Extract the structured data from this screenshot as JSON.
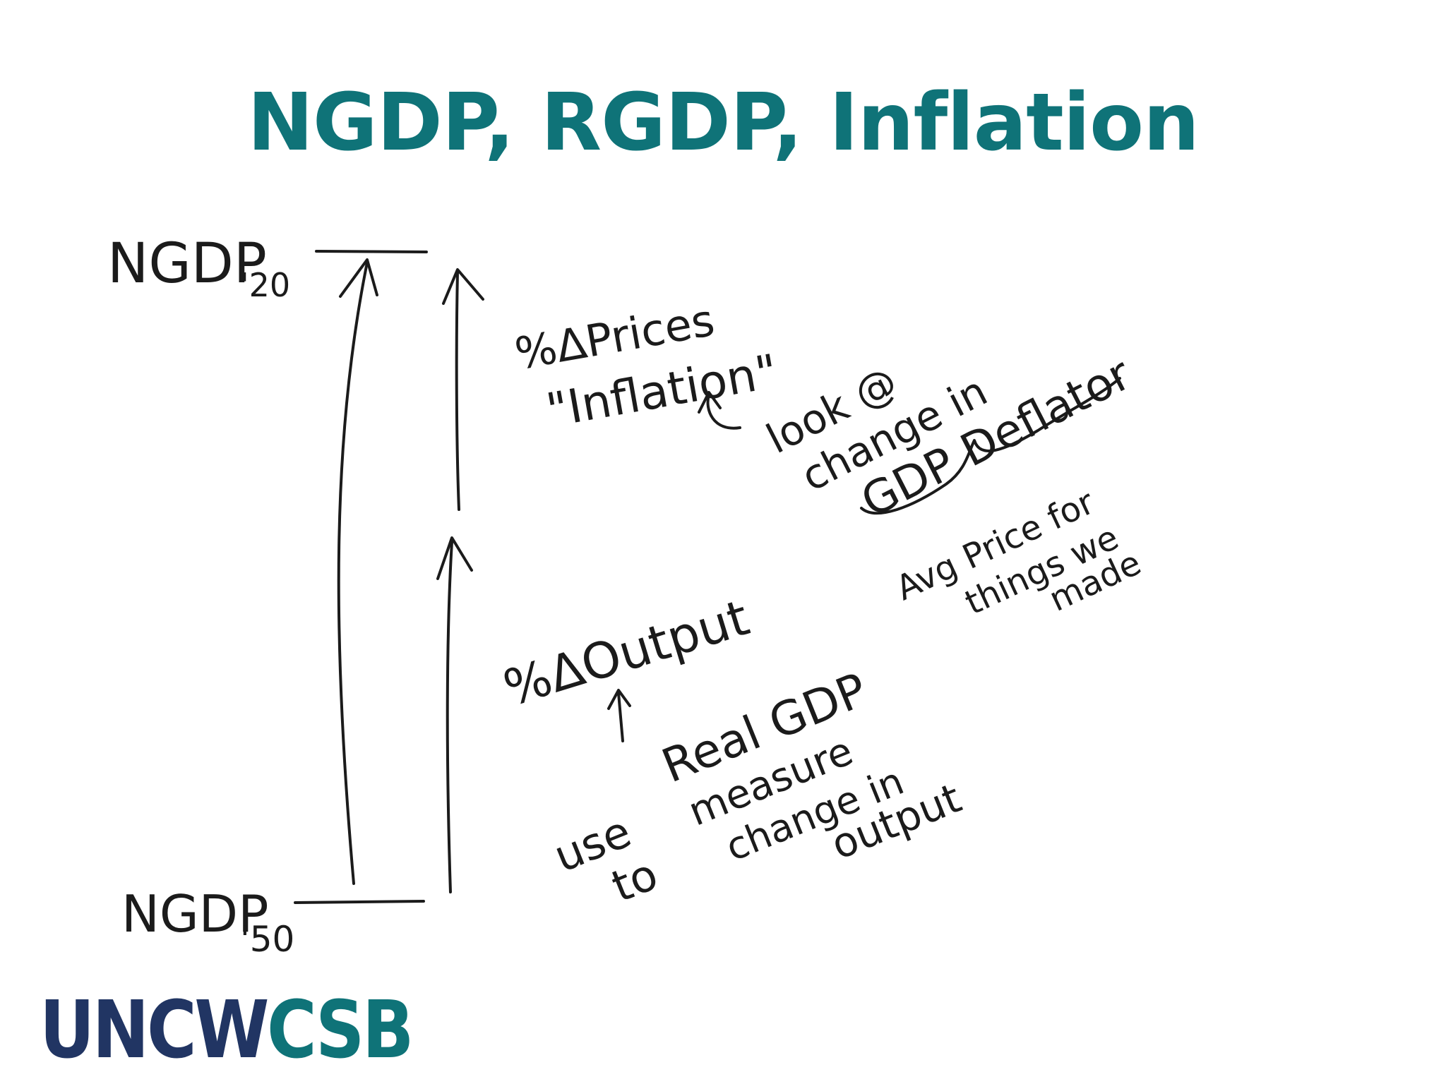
{
  "title": "NGDP, RGDP, Inflation",
  "colors": {
    "title": "#0f7378",
    "ink": "#1b1b1b",
    "logo_navy": "#213563",
    "logo_teal": "#0f7378"
  },
  "labels": {
    "ngdp_top": "NGDP",
    "ngdp_top_sub": "'20",
    "ngdp_bottom": "NGDP",
    "ngdp_bottom_sub": "'50",
    "prices_line1": "%ΔPrices",
    "prices_line2": "\"Inflation\"",
    "look_line1": "look @",
    "look_line2": "change in",
    "look_line3": "GDP Deflator",
    "avg_line1": "Avg Price for",
    "avg_line2": "things we",
    "avg_line3": "made",
    "output_label": "%ΔOutput",
    "use_line1": "use",
    "use_line2": "to",
    "real_line1": "Real GDP",
    "real_line2": "measure",
    "real_line3": "change in",
    "real_line4": "output"
  },
  "logo": {
    "part1": "UNCW",
    "part2": "CSB"
  }
}
